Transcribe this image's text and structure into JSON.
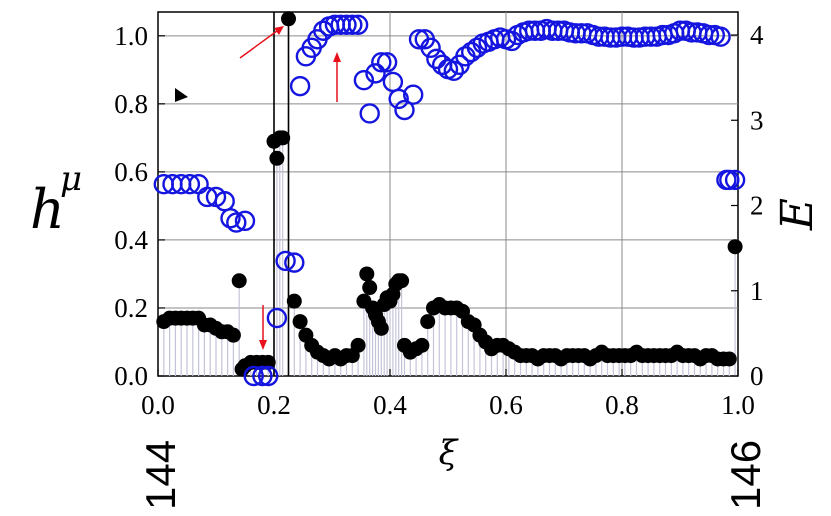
{
  "chart_data": {
    "type": "scatter",
    "title": "",
    "xlabel": "ξ",
    "ylabel_left": "h",
    "ylabel_left_sub": "μ",
    "ylabel_right": "E",
    "xlim": [
      0,
      1
    ],
    "ylim_left": [
      0,
      1.07
    ],
    "ylim_right": [
      0,
      4.27
    ],
    "x_ticks": [
      "0.0",
      "0.2",
      "0.4",
      "0.6",
      "0.8",
      "1.0"
    ],
    "y_left_ticks": [
      "0.0",
      "0.2",
      "0.4",
      "0.6",
      "0.8",
      "1.0"
    ],
    "y_right_ticks": [
      "0",
      "1",
      "2",
      "3",
      "4"
    ],
    "vertical_lines_x": [
      0.2,
      0.225
    ],
    "grid": true,
    "bottom_labels": {
      "left": "144",
      "right": "146"
    },
    "colors": {
      "h_mu": "#000000",
      "E": "#1515e0",
      "stems": "#c4c4d8",
      "arrows": "#e8101a"
    },
    "series": [
      {
        "name": "h_μ",
        "marker": "filled-circle",
        "axis": "left",
        "x": [
          0.01,
          0.02,
          0.03,
          0.04,
          0.05,
          0.06,
          0.07,
          0.08,
          0.09,
          0.1,
          0.11,
          0.12,
          0.13,
          0.14,
          0.145,
          0.15,
          0.16,
          0.17,
          0.18,
          0.19,
          0.2,
          0.205,
          0.21,
          0.215,
          0.225,
          0.235,
          0.245,
          0.255,
          0.265,
          0.275,
          0.285,
          0.295,
          0.305,
          0.315,
          0.325,
          0.335,
          0.345,
          0.355,
          0.36,
          0.365,
          0.37,
          0.375,
          0.38,
          0.385,
          0.39,
          0.395,
          0.4,
          0.405,
          0.41,
          0.415,
          0.42,
          0.425,
          0.435,
          0.445,
          0.455,
          0.465,
          0.475,
          0.485,
          0.495,
          0.505,
          0.515,
          0.525,
          0.535,
          0.545,
          0.555,
          0.565,
          0.575,
          0.585,
          0.595,
          0.605,
          0.615,
          0.625,
          0.635,
          0.645,
          0.655,
          0.665,
          0.675,
          0.685,
          0.695,
          0.705,
          0.715,
          0.725,
          0.735,
          0.745,
          0.755,
          0.765,
          0.775,
          0.785,
          0.795,
          0.805,
          0.815,
          0.825,
          0.835,
          0.845,
          0.855,
          0.865,
          0.875,
          0.885,
          0.895,
          0.905,
          0.915,
          0.925,
          0.935,
          0.945,
          0.955,
          0.965,
          0.975,
          0.985,
          0.995
        ],
        "values": [
          0.16,
          0.17,
          0.17,
          0.17,
          0.17,
          0.17,
          0.17,
          0.15,
          0.15,
          0.14,
          0.13,
          0.13,
          0.12,
          0.28,
          0.02,
          0.03,
          0.04,
          0.04,
          0.04,
          0.04,
          0.69,
          0.64,
          0.7,
          0.7,
          1.05,
          0.22,
          0.16,
          0.12,
          0.09,
          0.07,
          0.06,
          0.05,
          0.06,
          0.05,
          0.06,
          0.06,
          0.09,
          0.22,
          0.3,
          0.26,
          0.2,
          0.18,
          0.16,
          0.14,
          0.21,
          0.23,
          0.22,
          0.24,
          0.27,
          0.28,
          0.28,
          0.09,
          0.07,
          0.08,
          0.09,
          0.16,
          0.2,
          0.21,
          0.2,
          0.2,
          0.2,
          0.19,
          0.16,
          0.15,
          0.12,
          0.1,
          0.08,
          0.09,
          0.09,
          0.08,
          0.07,
          0.06,
          0.06,
          0.06,
          0.05,
          0.06,
          0.06,
          0.06,
          0.05,
          0.06,
          0.06,
          0.06,
          0.06,
          0.05,
          0.06,
          0.07,
          0.06,
          0.06,
          0.06,
          0.06,
          0.06,
          0.07,
          0.06,
          0.06,
          0.06,
          0.06,
          0.06,
          0.06,
          0.07,
          0.06,
          0.06,
          0.06,
          0.05,
          0.06,
          0.06,
          0.05,
          0.05,
          0.05,
          0.38
        ]
      },
      {
        "name": "E",
        "marker": "open-circle",
        "axis": "right",
        "x": [
          0.01,
          0.025,
          0.04,
          0.055,
          0.07,
          0.085,
          0.1,
          0.115,
          0.125,
          0.135,
          0.15,
          0.165,
          0.18,
          0.19,
          0.205,
          0.22,
          0.235,
          0.245,
          0.255,
          0.265,
          0.275,
          0.285,
          0.295,
          0.305,
          0.315,
          0.325,
          0.335,
          0.345,
          0.355,
          0.365,
          0.375,
          0.385,
          0.395,
          0.405,
          0.415,
          0.425,
          0.44,
          0.45,
          0.46,
          0.47,
          0.48,
          0.49,
          0.5,
          0.51,
          0.52,
          0.53,
          0.54,
          0.55,
          0.56,
          0.57,
          0.58,
          0.59,
          0.6,
          0.61,
          0.62,
          0.63,
          0.64,
          0.65,
          0.66,
          0.67,
          0.68,
          0.69,
          0.7,
          0.71,
          0.72,
          0.73,
          0.74,
          0.75,
          0.76,
          0.77,
          0.78,
          0.79,
          0.8,
          0.81,
          0.82,
          0.83,
          0.84,
          0.85,
          0.86,
          0.87,
          0.88,
          0.89,
          0.9,
          0.91,
          0.92,
          0.93,
          0.94,
          0.95,
          0.96,
          0.97,
          0.98,
          0.985,
          0.995
        ],
        "values": [
          2.25,
          2.25,
          2.25,
          2.25,
          2.25,
          2.1,
          2.1,
          2.05,
          1.85,
          1.8,
          1.82,
          0.0,
          0.0,
          0.0,
          0.68,
          1.35,
          1.33,
          3.4,
          3.75,
          3.85,
          3.95,
          4.05,
          4.1,
          4.12,
          4.12,
          4.12,
          4.12,
          4.12,
          3.47,
          3.08,
          3.55,
          3.68,
          3.68,
          3.45,
          3.25,
          3.12,
          3.3,
          3.95,
          3.95,
          3.85,
          3.72,
          3.65,
          3.6,
          3.58,
          3.65,
          3.75,
          3.8,
          3.85,
          3.9,
          3.92,
          3.95,
          3.97,
          3.95,
          3.93,
          4.0,
          4.03,
          4.05,
          4.05,
          4.05,
          4.07,
          4.05,
          4.05,
          4.05,
          4.03,
          4.02,
          4.02,
          4.02,
          4.0,
          3.98,
          3.98,
          3.97,
          3.97,
          3.98,
          3.98,
          3.97,
          3.97,
          3.98,
          3.98,
          3.98,
          4.0,
          4.0,
          4.02,
          4.05,
          4.05,
          4.03,
          4.03,
          4.02,
          4.0,
          4.0,
          3.98,
          2.3,
          2.3,
          2.3
        ]
      }
    ]
  }
}
